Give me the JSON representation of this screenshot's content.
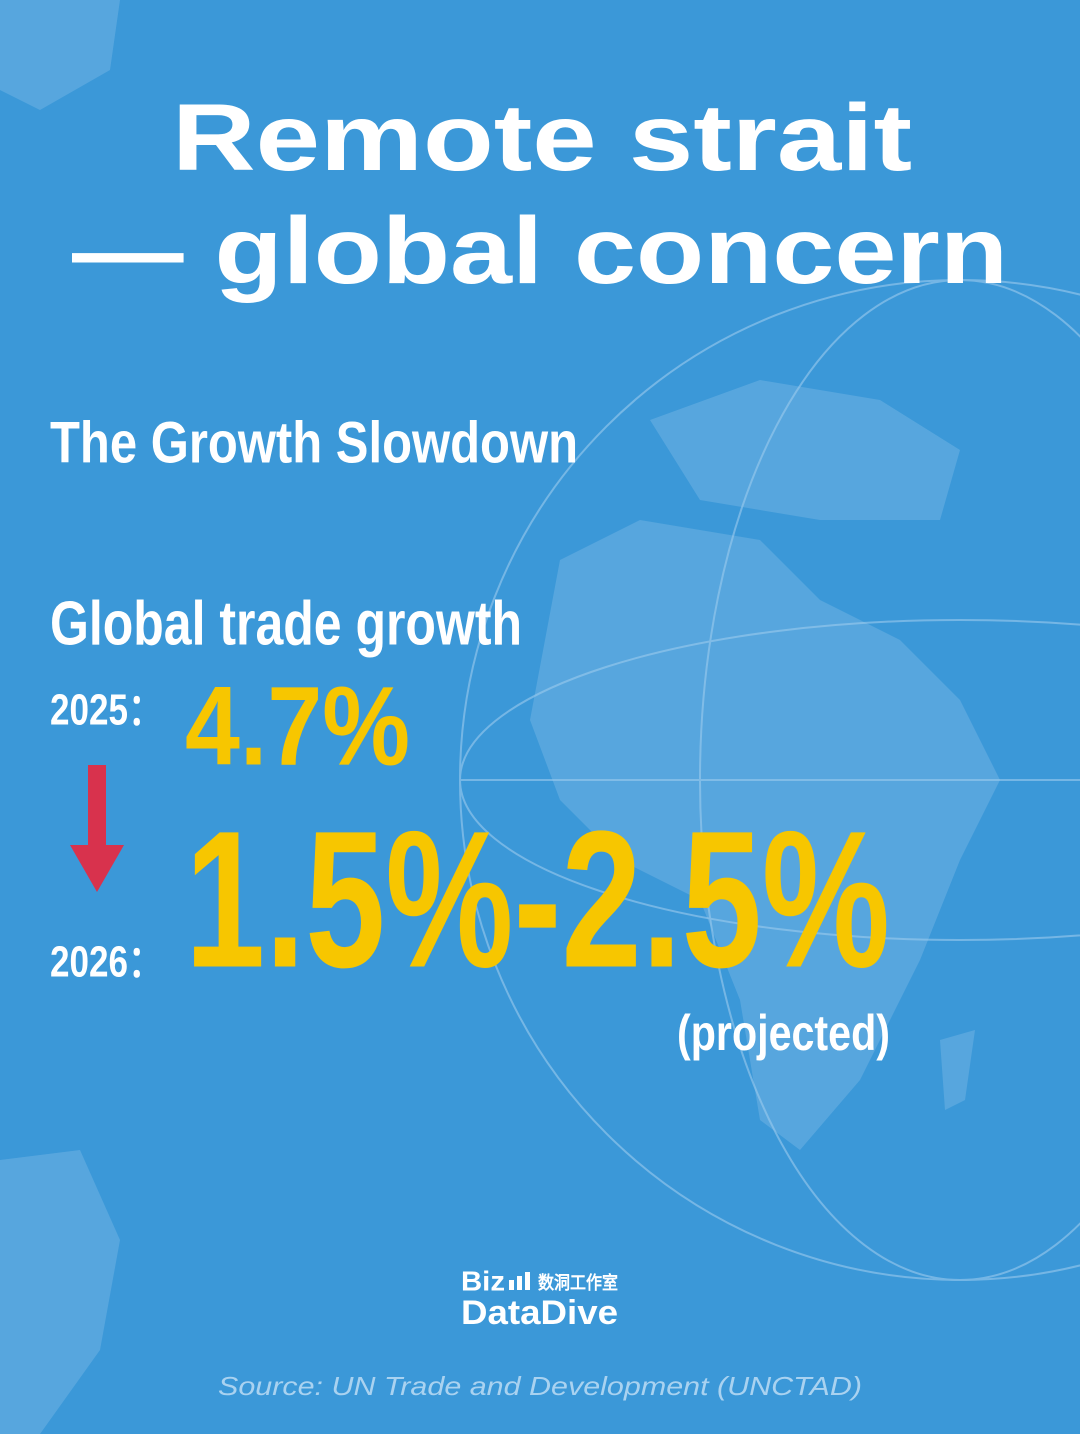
{
  "header": {
    "title_lines": [
      "Remote strait",
      "— global concern"
    ]
  },
  "subtitle": "The Growth Slowdown",
  "section_label": "Global trade growth",
  "rows": [
    {
      "label": "2025：",
      "value": "4.7%"
    },
    {
      "label": "2026：",
      "value": "1.5%-2.5%",
      "note": "(projected)"
    }
  ],
  "logo": {
    "top": "Biz",
    "chinese": "数洞工作室",
    "bottom": "DataDive"
  },
  "source": "Source: UN Trade and Development (UNCTAD)"
}
